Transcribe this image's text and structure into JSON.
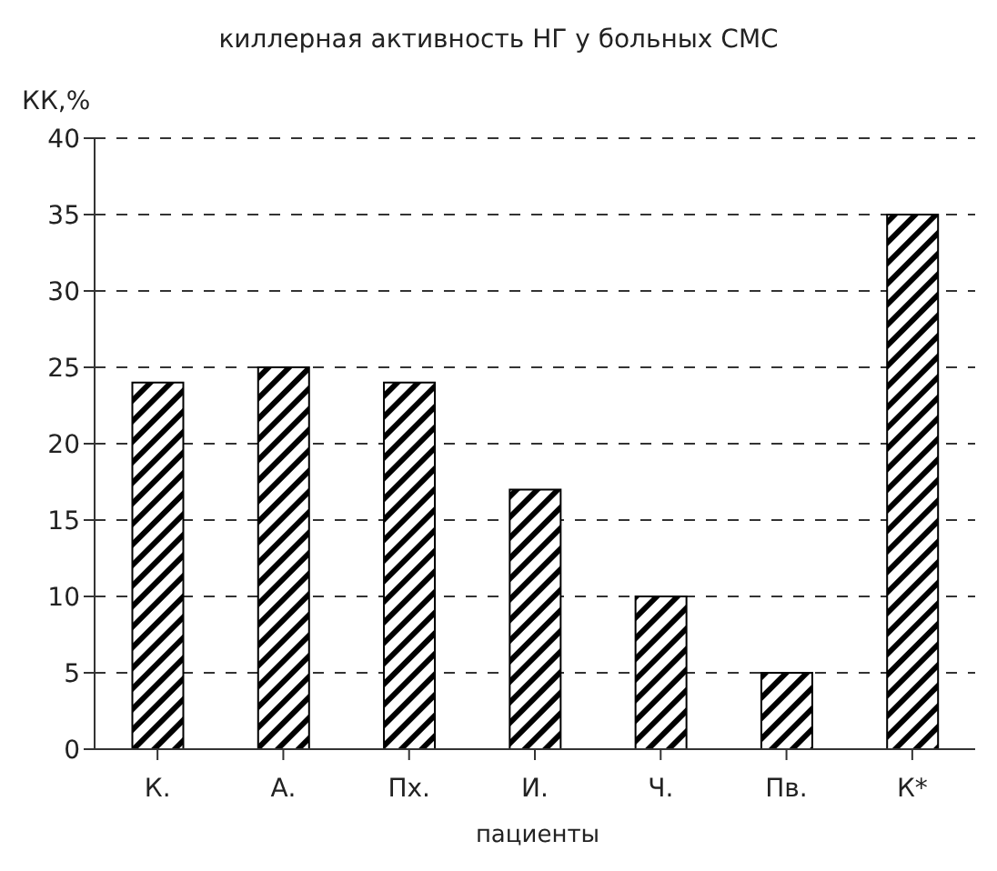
{
  "chart_data": {
    "type": "bar",
    "title": "киллерная активность НГ у больных СМС",
    "xlabel": "пациенты",
    "ylabel": "КК,%",
    "categories": [
      "К.",
      "А.",
      "Пх.",
      "И.",
      "Ч.",
      "Пв.",
      "К*"
    ],
    "values": [
      24,
      25,
      24,
      17,
      10,
      5,
      35
    ],
    "color": "#000000",
    "ylim": [
      0,
      40
    ],
    "yticks": [
      0,
      5,
      10,
      15,
      20,
      25,
      30,
      35,
      40
    ],
    "grid": "y"
  }
}
